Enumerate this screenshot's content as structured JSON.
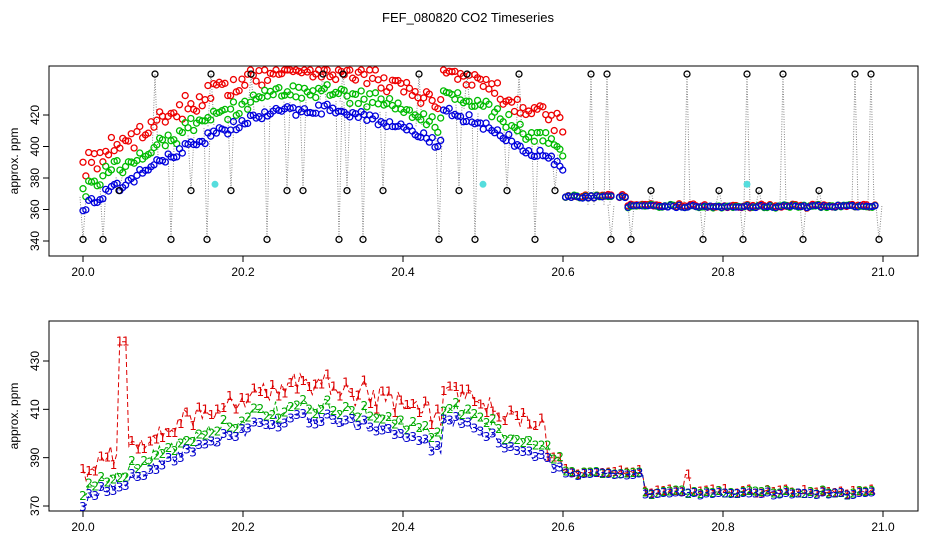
{
  "chart_data": [
    {
      "type": "scatter",
      "title": "FEF_080820  CO2 Timeseries",
      "ylabel": "approx. ppm",
      "xlabel": "",
      "xlim": [
        20.0,
        21.0
      ],
      "ylim": [
        335,
        450
      ],
      "x_ticks": [
        "20.0",
        "20.2",
        "20.4",
        "20.6",
        "20.8",
        "21.0"
      ],
      "y_ticks": [
        "340",
        "360",
        "380",
        "400",
        "420"
      ],
      "note": "red/green/blue circles = three CO2 channels; black circles = outlier spikes joined by dotted grey lines; cyan = flagged points",
      "outlier_points": [
        [
          20.0,
          341
        ],
        [
          20.025,
          341
        ],
        [
          20.045,
          372
        ],
        [
          20.09,
          446
        ],
        [
          20.11,
          341
        ],
        [
          20.135,
          372
        ],
        [
          20.155,
          341
        ],
        [
          20.16,
          446
        ],
        [
          20.185,
          372
        ],
        [
          20.21,
          446
        ],
        [
          20.23,
          341
        ],
        [
          20.255,
          372
        ],
        [
          20.275,
          372
        ],
        [
          20.3,
          446
        ],
        [
          20.32,
          341
        ],
        [
          20.325,
          446
        ],
        [
          20.33,
          372
        ],
        [
          20.35,
          341
        ],
        [
          20.375,
          372
        ],
        [
          20.42,
          446
        ],
        [
          20.445,
          341
        ],
        [
          20.47,
          372
        ],
        [
          20.48,
          446
        ],
        [
          20.49,
          341
        ],
        [
          20.53,
          372
        ],
        [
          20.545,
          446
        ],
        [
          20.565,
          341
        ],
        [
          20.59,
          372
        ],
        [
          20.635,
          446
        ],
        [
          20.655,
          446
        ],
        [
          20.66,
          341
        ],
        [
          20.685,
          341
        ],
        [
          20.71,
          372
        ],
        [
          20.755,
          446
        ],
        [
          20.775,
          341
        ],
        [
          20.795,
          372
        ],
        [
          20.825,
          341
        ],
        [
          20.83,
          446
        ],
        [
          20.845,
          372
        ],
        [
          20.875,
          446
        ],
        [
          20.9,
          341
        ],
        [
          20.92,
          372
        ],
        [
          20.965,
          446
        ],
        [
          20.985,
          446
        ],
        [
          20.995,
          341
        ]
      ],
      "flagged_points": [
        [
          20.165,
          376
        ],
        [
          20.5,
          376
        ],
        [
          20.83,
          376
        ]
      ]
    },
    {
      "type": "line",
      "title": "",
      "ylabel": "approx. ppm",
      "xlabel": "",
      "xlim": [
        20.0,
        21.0
      ],
      "ylim": [
        368,
        440
      ],
      "x_ticks": [
        "20.0",
        "20.2",
        "20.4",
        "20.6",
        "20.8",
        "21.0"
      ],
      "y_ticks": [
        "370",
        "390",
        "410",
        "430"
      ],
      "series_labels": [
        "1",
        "2",
        "3"
      ],
      "note": "series plotted with numeric point symbols 1 (red), 2 (green), 3 (blue) and dashed lines"
    }
  ]
}
